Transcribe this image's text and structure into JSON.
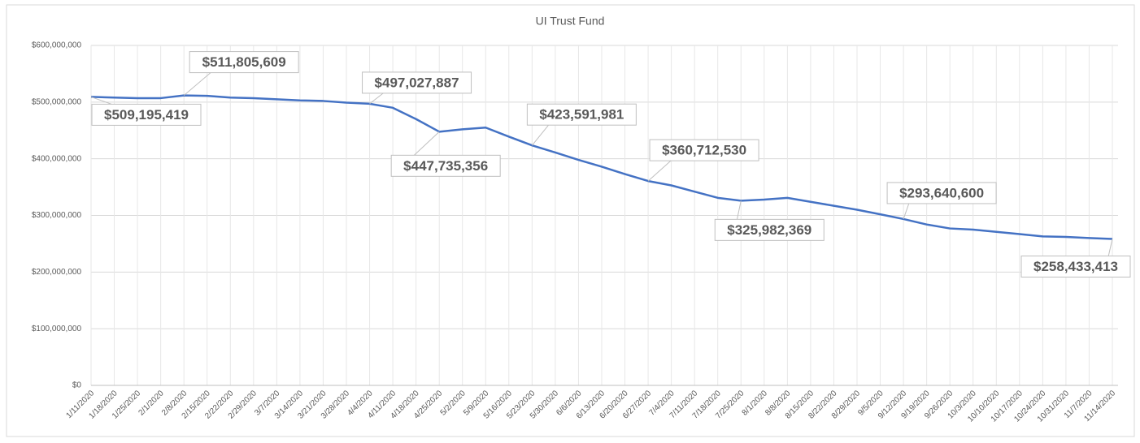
{
  "chart_data": {
    "type": "line",
    "title": "UI Trust Fund",
    "categories": [
      "1/11/2020",
      "1/18/2020",
      "1/25/2020",
      "2/1/2020",
      "2/8/2020",
      "2/15/2020",
      "2/22/2020",
      "2/29/2020",
      "3/7/2020",
      "3/14/2020",
      "3/21/2020",
      "3/28/2020",
      "4/4/2020",
      "4/11/2020",
      "4/18/2020",
      "4/25/2020",
      "5/2/2020",
      "5/9/2020",
      "5/16/2020",
      "5/23/2020",
      "5/30/2020",
      "6/6/2020",
      "6/13/2020",
      "6/20/2020",
      "6/27/2020",
      "7/4/2020",
      "7/11/2020",
      "7/18/2020",
      "7/25/2020",
      "8/1/2020",
      "8/8/2020",
      "8/15/2020",
      "8/22/2020",
      "8/29/2020",
      "9/5/2020",
      "9/12/2020",
      "9/19/2020",
      "9/26/2020",
      "10/3/2020",
      "10/10/2020",
      "10/17/2020",
      "10/24/2020",
      "10/31/2020",
      "11/7/2020",
      "11/14/2020"
    ],
    "series": [
      {
        "name": "UI Trust Fund",
        "color": "#4472c4",
        "values": [
          509195419,
          508000000,
          507000000,
          507000000,
          511805609,
          511000000,
          508000000,
          507000000,
          505000000,
          503000000,
          502000000,
          499000000,
          497027887,
          490000000,
          470000000,
          447735356,
          452000000,
          455000000,
          439000000,
          423591981,
          411000000,
          398000000,
          386000000,
          373000000,
          360712530,
          353000000,
          342000000,
          331000000,
          325982369,
          328000000,
          331000000,
          324000000,
          317000000,
          310000000,
          302000000,
          293640600,
          284000000,
          277000000,
          275000000,
          271000000,
          267000000,
          263000000,
          262000000,
          260000000,
          258433413
        ],
        "value_labels": [
          "$509,195,419",
          null,
          null,
          null,
          "$511,805,609",
          null,
          null,
          null,
          null,
          null,
          null,
          null,
          "$497,027,887",
          null,
          null,
          "$447,735,356",
          null,
          null,
          null,
          "$423,591,981",
          null,
          null,
          null,
          null,
          "$360,712,530",
          null,
          null,
          null,
          "$325,982,369",
          null,
          null,
          null,
          null,
          null,
          null,
          "$293,640,600",
          null,
          null,
          null,
          null,
          null,
          null,
          null,
          null,
          "$258,433,413"
        ]
      }
    ],
    "ylim": [
      0,
      600000000
    ],
    "yticks": [
      {
        "value": 0,
        "label": "$0"
      },
      {
        "value": 100000000,
        "label": "$100,000,000"
      },
      {
        "value": 200000000,
        "label": "$200,000,000"
      },
      {
        "value": 300000000,
        "label": "$300,000,000"
      },
      {
        "value": 400000000,
        "label": "$400,000,000"
      },
      {
        "value": 500000000,
        "label": "$500,000,000"
      },
      {
        "value": 600000000,
        "label": "$600,000,000"
      }
    ],
    "grid": true
  }
}
